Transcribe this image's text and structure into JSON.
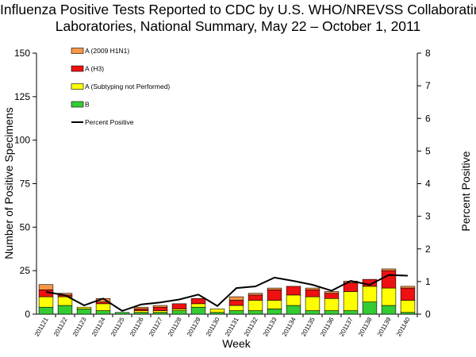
{
  "chart_data": {
    "type": "bar",
    "stacked": true,
    "title_lines": [
      "Influenza Positive Tests Reported to CDC by U.S. WHO/NREVSS Collaborating",
      "Laboratories, National Summary, May 22 – October 1, 2011"
    ],
    "xlabel": "Week",
    "ylabel": "Number of Positive Specimens",
    "y2label": "Percent Positive",
    "ylim": [
      0,
      150
    ],
    "y2lim": [
      0,
      8
    ],
    "yticks": [
      0,
      25,
      50,
      75,
      100,
      125,
      150
    ],
    "y2ticks": [
      0,
      1,
      2,
      3,
      4,
      5,
      6,
      7,
      8
    ],
    "categories": [
      "201121",
      "201122",
      "201123",
      "201124",
      "201125",
      "201126",
      "201127",
      "201128",
      "201129",
      "201130",
      "201131",
      "201132",
      "201133",
      "201134",
      "201135",
      "201136",
      "201137",
      "201138",
      "201139",
      "201140"
    ],
    "series": [
      {
        "name": "B",
        "color": "#33cc33",
        "values": [
          4,
          5,
          3,
          2,
          1,
          1,
          1,
          2,
          4,
          1,
          2,
          2,
          3,
          5,
          2,
          2,
          2,
          7,
          5,
          1
        ]
      },
      {
        "name": "A (Subtyping not Performed)",
        "color": "#ffff00",
        "values": [
          6,
          5,
          1,
          4,
          0,
          1,
          1,
          1,
          2,
          2,
          3,
          6,
          5,
          6,
          8,
          7,
          11,
          9,
          10,
          7
        ]
      },
      {
        "name": "A (H3)",
        "color": "#ee1111",
        "values": [
          4,
          1,
          0,
          1,
          0,
          1,
          2,
          3,
          3,
          0,
          3,
          3,
          6,
          5,
          4,
          3,
          5,
          4,
          10,
          7
        ]
      },
      {
        "name": "A (2009 H1N1)",
        "color": "#f79646",
        "values": [
          3,
          1,
          0,
          2,
          0,
          1,
          1,
          0,
          0,
          0,
          2,
          1,
          1,
          0,
          1,
          1,
          1,
          0,
          1,
          1
        ]
      }
    ],
    "line_series": {
      "name": "Percent Positive",
      "color": "#000000",
      "values": [
        0.68,
        0.58,
        0.27,
        0.48,
        0.1,
        0.3,
        0.36,
        0.45,
        0.6,
        0.25,
        0.8,
        0.85,
        1.12,
        1.02,
        0.9,
        0.72,
        1.02,
        0.9,
        1.2,
        1.18
      ]
    },
    "legend": {
      "placement": "top-left",
      "order": [
        "A (2009 H1N1)",
        "A (H3)",
        "A (Subtyping not Performed)",
        "B",
        "Percent Positive"
      ]
    }
  }
}
